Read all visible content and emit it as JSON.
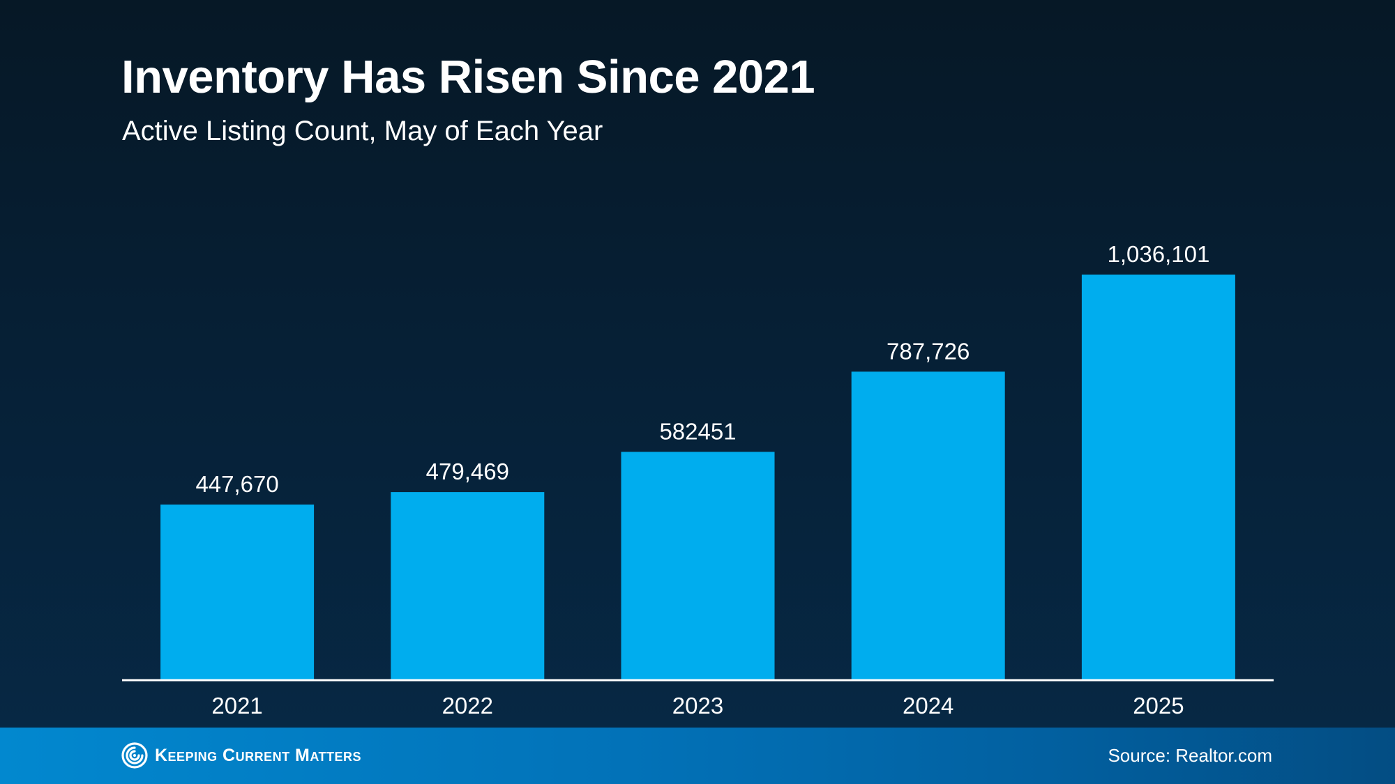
{
  "header": {
    "title": "Inventory Has Risen Since 2021",
    "subtitle": "Active Listing Count, May of Each Year"
  },
  "chart_data": {
    "type": "bar",
    "title": "Inventory Has Risen Since 2021",
    "subtitle": "Active Listing Count, May of Each Year",
    "categories": [
      "2021",
      "2022",
      "2023",
      "2024",
      "2025"
    ],
    "values": [
      447670,
      479469,
      582451,
      787726,
      1036101
    ],
    "data_labels": [
      "447,670",
      "479,469",
      "582451",
      "787,726",
      "1,036,101"
    ],
    "xlabel": "",
    "ylabel": "",
    "ylim": [
      0,
      1036101
    ],
    "grid": false,
    "legend": "none",
    "bar_color": "#00adee",
    "label_color": "#ffffff",
    "baseline_color": "#ffffff"
  },
  "footer": {
    "brand": "Keeping Current Matters",
    "brand_icon": "spiral-logo-icon",
    "source": "Source: Realtor.com"
  },
  "colors": {
    "background_top": "#061826",
    "background_bottom": "#072946",
    "footer_band": "#0272b8"
  }
}
